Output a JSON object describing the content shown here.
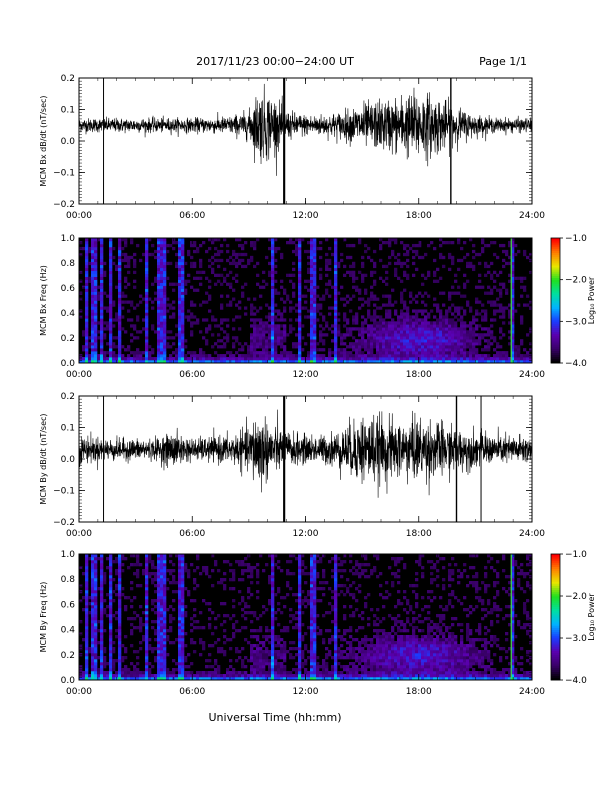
{
  "header": {
    "title": "2017/11/23  00:00−24:00 UT",
    "page": "Page 1/1"
  },
  "xaxis": {
    "label": "Universal Time (hh:mm)",
    "ticks": [
      "00:00",
      "06:00",
      "12:00",
      "18:00",
      "24:00"
    ],
    "range_hours": [
      0,
      24
    ]
  },
  "colors": {
    "waveform": "#000000",
    "spectrogram_background": "#000000",
    "colormap": [
      "#000000",
      "#3a006a",
      "#5a00b0",
      "#1a3cff",
      "#00b4ff",
      "#00e0a0",
      "#20e020",
      "#e8e800",
      "#ff8000",
      "#ff0000"
    ]
  },
  "chart_data": [
    {
      "type": "line",
      "panel": "bx-waveform",
      "ylabel": "MCM Bx dB/dt (nT/sec)",
      "ylim": [
        -0.2,
        0.2
      ],
      "yticks": [
        "0.2",
        "0.1",
        "0.0",
        "−0.1",
        "−0.2"
      ],
      "ytick_values": [
        0.2,
        0.1,
        0.0,
        -0.1,
        -0.2
      ],
      "activity": {
        "hours": [
          0,
          2,
          4,
          6,
          8,
          9,
          9.5,
          10,
          11,
          12,
          13,
          14,
          15,
          16,
          17,
          18,
          19,
          20,
          21,
          22,
          23,
          24
        ],
        "amplitude": [
          0.02,
          0.02,
          0.02,
          0.02,
          0.025,
          0.04,
          0.1,
          0.1,
          0.04,
          0.03,
          0.03,
          0.04,
          0.06,
          0.07,
          0.08,
          0.1,
          0.08,
          0.05,
          0.03,
          0.02,
          0.02,
          0.02
        ]
      },
      "baseline": 0.05,
      "spikes_hours": [
        1.3,
        10.85,
        10.9,
        19.7
      ]
    },
    {
      "type": "heatmap",
      "panel": "bx-spectrogram",
      "ylabel": "MCM Bx Freq (Hz)",
      "ylim": [
        0.0,
        1.0
      ],
      "yticks": [
        "1.0",
        "0.8",
        "0.6",
        "0.4",
        "0.2",
        "0.0"
      ],
      "ytick_values": [
        1.0,
        0.8,
        0.6,
        0.4,
        0.2,
        0.0
      ],
      "colorbar": {
        "label": "Log₁₀ Power",
        "ticks": [
          "−1.0",
          "−2.0",
          "−3.0",
          "−4.0"
        ],
        "tick_values": [
          -1.0,
          -2.0,
          -3.0,
          -4.0
        ],
        "range": [
          -4.0,
          -1.0
        ]
      },
      "bright_columns_hours": [
        0.4,
        0.8,
        1.2,
        1.6,
        2.2,
        3.6,
        4.3,
        4.5,
        5.4,
        10.3,
        11.7,
        12.4,
        13.6,
        22.9
      ]
    },
    {
      "type": "line",
      "panel": "by-waveform",
      "ylabel": "MCM By dB/dt (nT/sec)",
      "ylim": [
        -0.2,
        0.2
      ],
      "yticks": [
        "0.2",
        "0.1",
        "0.0",
        "−0.1",
        "−0.2"
      ],
      "ytick_values": [
        0.2,
        0.1,
        0.0,
        -0.1,
        -0.2
      ],
      "activity": {
        "hours": [
          0,
          2,
          4,
          5,
          6,
          8,
          9,
          9.5,
          10,
          11,
          12,
          13,
          14,
          15,
          16,
          17,
          18,
          19,
          20,
          21,
          22,
          23,
          24
        ],
        "amplitude": [
          0.04,
          0.03,
          0.03,
          0.05,
          0.03,
          0.04,
          0.06,
          0.12,
          0.08,
          0.05,
          0.04,
          0.04,
          0.06,
          0.1,
          0.09,
          0.08,
          0.09,
          0.08,
          0.06,
          0.05,
          0.04,
          0.04,
          0.04
        ]
      },
      "baseline": 0.03,
      "spikes_hours": [
        1.3,
        10.85,
        10.9,
        20.0,
        21.3
      ]
    },
    {
      "type": "heatmap",
      "panel": "by-spectrogram",
      "ylabel": "MCM By Freq (Hz)",
      "ylim": [
        0.0,
        1.0
      ],
      "yticks": [
        "1.0",
        "0.8",
        "0.6",
        "0.4",
        "0.2",
        "0.0"
      ],
      "ytick_values": [
        1.0,
        0.8,
        0.6,
        0.4,
        0.2,
        0.0
      ],
      "colorbar": {
        "label": "Log₁₀ Power",
        "ticks": [
          "−1.0",
          "−2.0",
          "−3.0",
          "−4.0"
        ],
        "tick_values": [
          -1.0,
          -2.0,
          -3.0,
          -4.0
        ],
        "range": [
          -4.0,
          -1.0
        ]
      },
      "bright_columns_hours": [
        0.4,
        0.8,
        1.2,
        1.6,
        2.2,
        3.6,
        4.3,
        4.5,
        5.4,
        10.3,
        11.7,
        12.4,
        13.6,
        22.9
      ]
    }
  ]
}
